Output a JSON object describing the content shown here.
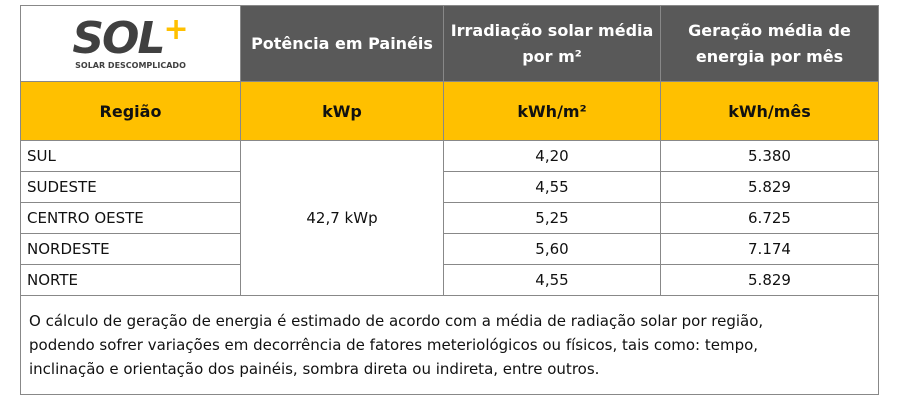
{
  "logo": {
    "name": "SOL",
    "mark": "+",
    "tagline": "SOLAR DESCOMPLICADO"
  },
  "table": {
    "headers": [
      "Potência em Painéis",
      "Irradiação solar média por m²",
      "Geração média de energia por mês"
    ],
    "units": [
      "Região",
      "kWp",
      "kWh/m²",
      "kWh/mês"
    ],
    "power": "42,7 kWp",
    "rows": [
      [
        "SUL",
        "4,20",
        "5.380"
      ],
      [
        "SUDESTE",
        "4,55",
        "5.829"
      ],
      [
        "CENTRO OESTE",
        "5,25",
        "6.725"
      ],
      [
        "NORDESTE",
        "5,60",
        "7.174"
      ],
      [
        "NORTE",
        "4,55",
        "5.829"
      ]
    ]
  },
  "note": [
    "O cálculo de geração de energia é estimado de acordo com a média de radiação solar por região,",
    "podendo sofrer variações em decorrência de fatores meteriológicos ou físicos, tais como: tempo,",
    "inclinação e orientação dos painéis, sombra direta ou indireta, entre outros."
  ]
}
